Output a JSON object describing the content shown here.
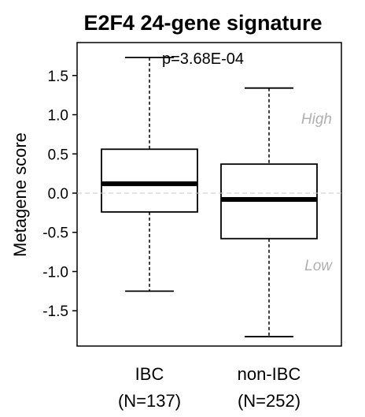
{
  "chart_data": {
    "type": "box",
    "title": "E2F4 24-gene signature",
    "ylabel": "Metagene score",
    "xlabel": "",
    "ylim": [
      -1.95,
      1.92
    ],
    "yticks": [
      "1.5",
      "1.0",
      "0.5",
      "0.0",
      "-0.5",
      "-1.0",
      "-1.5"
    ],
    "yticks_values": [
      1.5,
      1.0,
      0.5,
      0.0,
      -0.5,
      -1.0,
      -1.5
    ],
    "grid": false,
    "reference_line": 0,
    "annotation": "p=3.68E-04",
    "zone_labels": {
      "high": "High",
      "low": "Low"
    },
    "categories": [
      {
        "name": "IBC",
        "n_label": "(N=137)",
        "whisker_low": -1.25,
        "q1": -0.24,
        "median": 0.12,
        "q3": 0.56,
        "whisker_high": 1.73
      },
      {
        "name": "non-IBC",
        "n_label": "(N=252)",
        "whisker_low": -1.83,
        "q1": -0.58,
        "median": -0.08,
        "q3": 0.37,
        "whisker_high": 1.34
      }
    ]
  }
}
